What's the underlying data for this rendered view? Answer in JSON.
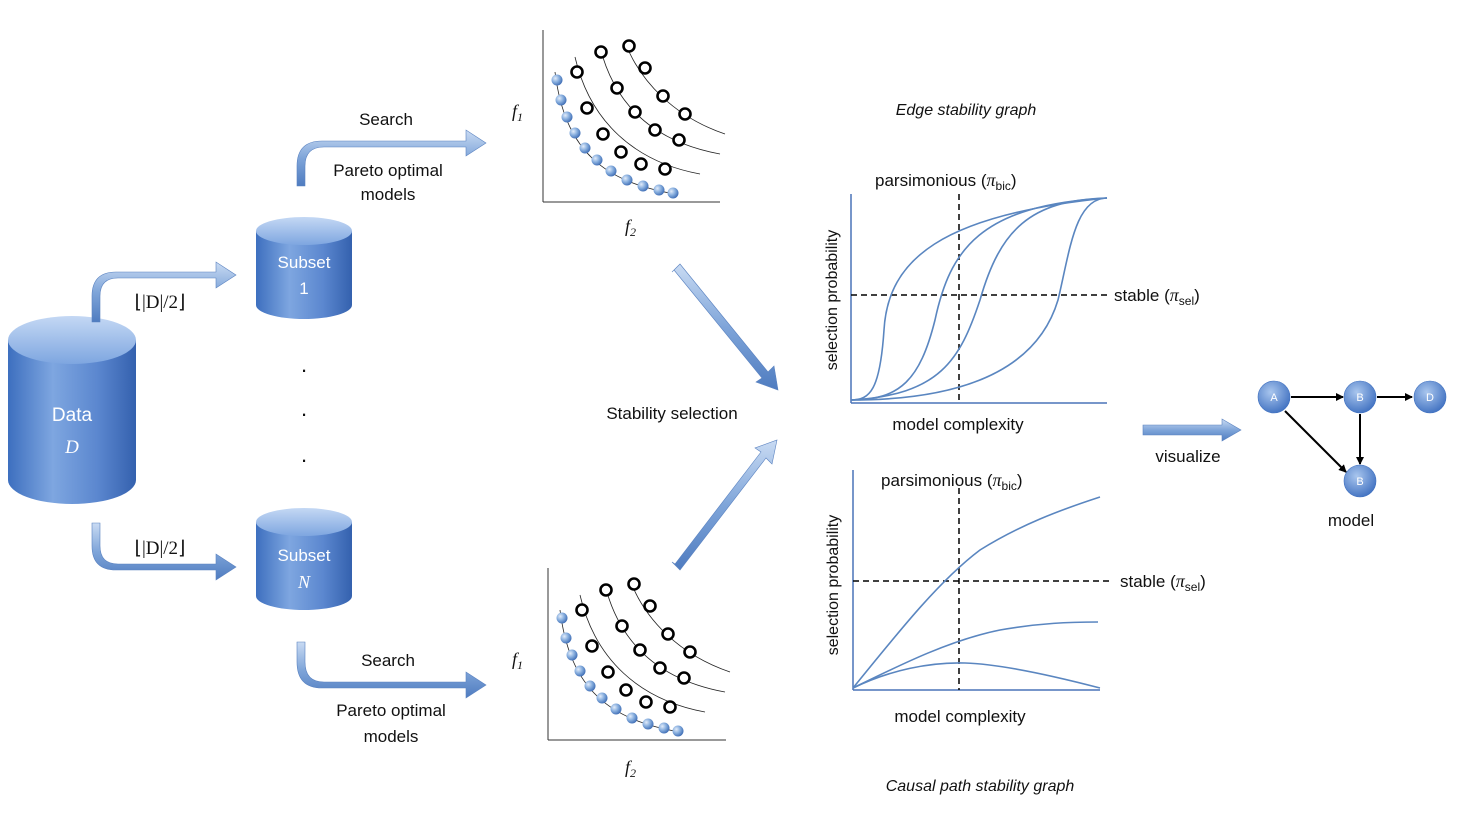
{
  "data_store": {
    "label": "Data",
    "symbol": "D"
  },
  "split_labels": {
    "top": "⌊|D|/2⌋",
    "bottom": "⌊|D|/2⌋"
  },
  "subsets": [
    {
      "label": "Subset",
      "index": "1"
    },
    {
      "label": "Subset",
      "index": "N"
    }
  ],
  "ellipsis": ".",
  "search": {
    "top": {
      "search_label": "Search",
      "pareto_line1": "Pareto optimal",
      "pareto_line2": "models"
    },
    "bottom": {
      "search_label": "Search",
      "pareto_line1": "Pareto optimal",
      "pareto_line2": "models"
    }
  },
  "pareto_plots": {
    "f1": "f",
    "f1_sub": "1",
    "f2": "f",
    "f2_sub": "2"
  },
  "stability_selection_label": "Stability selection",
  "edge_graph": {
    "title": "Edge stability graph",
    "parsimonious": "parsimonious (",
    "pi": "π",
    "bic": "bic",
    "stable": "stable (",
    "sel": "sel",
    "close": ")",
    "ylabel": "selection probability",
    "xlabel": "model complexity"
  },
  "path_graph": {
    "title": "Causal path stability graph",
    "parsimonious": "parsimonious (",
    "pi": "π",
    "bic": "bic",
    "stable": "stable (",
    "sel": "sel",
    "close": ")",
    "ylabel": "selection probability",
    "xlabel": "model complexity"
  },
  "visualize_label": "visualize",
  "model": {
    "label": "model",
    "nodes": [
      "A",
      "B",
      "D",
      "B"
    ]
  },
  "colors": {
    "accent": "#4a74b8",
    "curve": "#5a86c0",
    "arrow_fill": "#8fb0dc"
  }
}
